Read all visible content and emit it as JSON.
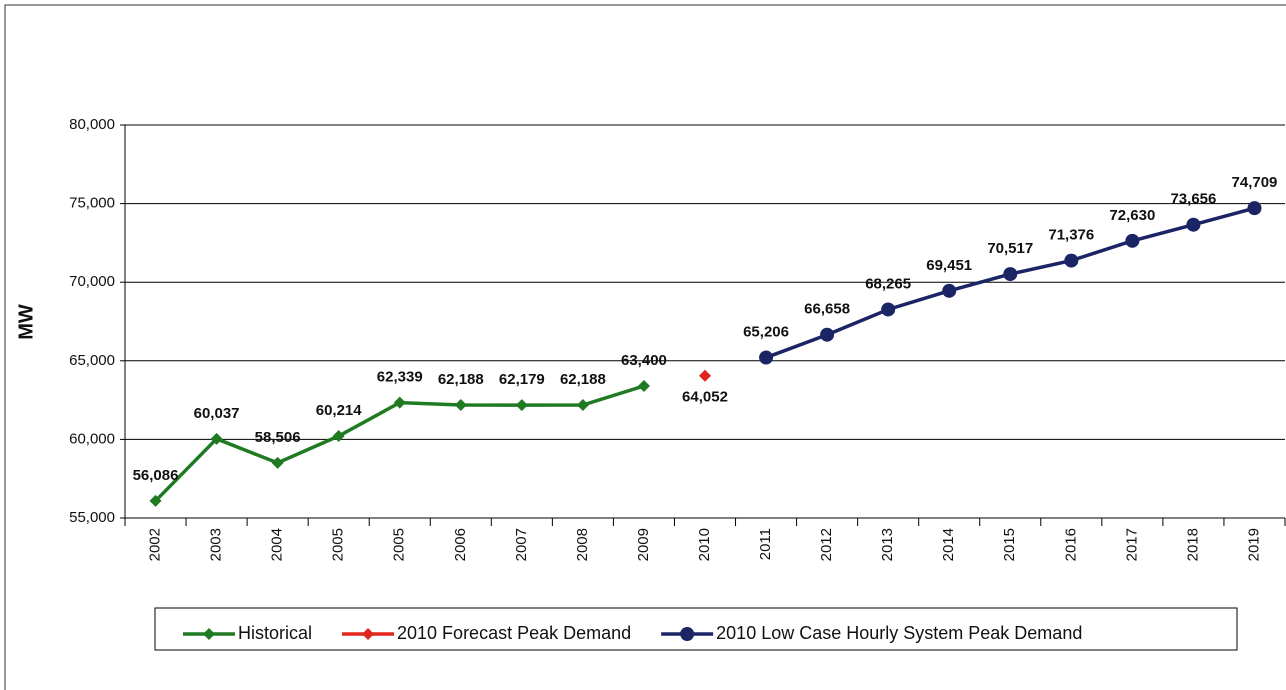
{
  "chart_data": {
    "type": "line",
    "y_label": "MW",
    "categories": [
      "2002",
      "2003",
      "2004",
      "2005",
      "2005",
      "2006",
      "2007",
      "2008",
      "2009",
      "2010",
      "2011",
      "2012",
      "2013",
      "2014",
      "2015",
      "2016",
      "2017",
      "2018",
      "2019"
    ],
    "series": [
      {
        "name": "Historical",
        "color": "#1f7a22",
        "marker": "diamond",
        "label_position": "above",
        "values": [
          56086,
          60037,
          58506,
          60214,
          62339,
          62188,
          62179,
          62188,
          63400,
          null,
          null,
          null,
          null,
          null,
          null,
          null,
          null,
          null,
          null
        ],
        "value_labels": [
          "56,086",
          "60,037",
          "58,506",
          "60,214",
          "62,339",
          "62,188",
          "62,179",
          "62,188",
          "63,400",
          null,
          null,
          null,
          null,
          null,
          null,
          null,
          null,
          null,
          null
        ]
      },
      {
        "name": "2010 Forecast Peak Demand",
        "color": "#e0261c",
        "marker": "diamond",
        "label_position": "below",
        "values": [
          null,
          null,
          null,
          null,
          null,
          null,
          null,
          null,
          null,
          64052,
          null,
          null,
          null,
          null,
          null,
          null,
          null,
          null,
          null
        ],
        "value_labels": [
          null,
          null,
          null,
          null,
          null,
          null,
          null,
          null,
          null,
          "64,052",
          null,
          null,
          null,
          null,
          null,
          null,
          null,
          null,
          null
        ]
      },
      {
        "name": "2010 Low Case Hourly System Peak Demand",
        "color": "#1b2566",
        "marker": "circle",
        "label_position": "above",
        "values": [
          null,
          null,
          null,
          null,
          null,
          null,
          null,
          null,
          null,
          null,
          65206,
          66658,
          68265,
          69451,
          70517,
          71376,
          72630,
          73656,
          74709
        ],
        "value_labels": [
          null,
          null,
          null,
          null,
          null,
          null,
          null,
          null,
          null,
          null,
          "65,206",
          "66,658",
          "68,265",
          "69,451",
          "70,517",
          "71,376",
          "72,630",
          "73,656",
          "74,709"
        ]
      }
    ],
    "ylim": [
      55000,
      80000
    ],
    "yticks": [
      {
        "value": 55000,
        "label": "55,000"
      },
      {
        "value": 60000,
        "label": "60,000"
      },
      {
        "value": 65000,
        "label": "65,000"
      },
      {
        "value": 70000,
        "label": "70,000"
      },
      {
        "value": 75000,
        "label": "75,000"
      },
      {
        "value": 80000,
        "label": "80,000"
      }
    ],
    "grid": true,
    "legend": "bottom"
  }
}
